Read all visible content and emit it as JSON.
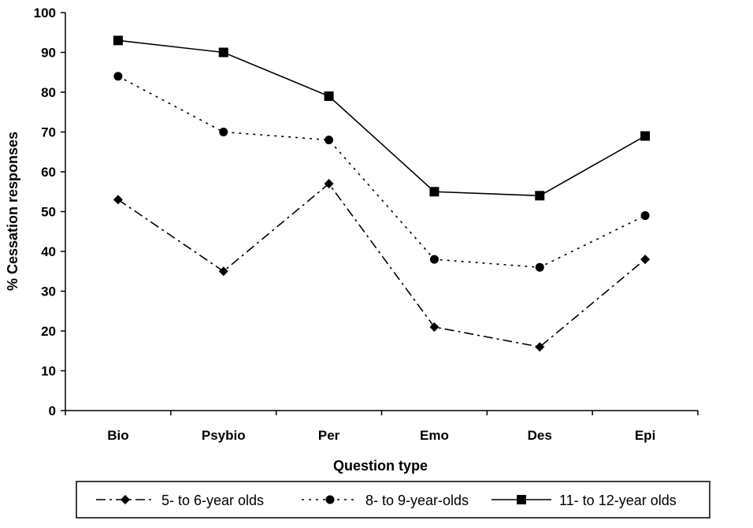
{
  "chart_data": {
    "type": "line",
    "title": "",
    "xlabel": "Question type",
    "ylabel": "% Cessation responses",
    "categories": [
      "Bio",
      "Psybio",
      "Per",
      "Emo",
      "Des",
      "Epi"
    ],
    "ylim": [
      0,
      100
    ],
    "yticks": [
      0,
      10,
      20,
      30,
      40,
      50,
      60,
      70,
      80,
      90,
      100
    ],
    "grid": false,
    "legend_position": "bottom",
    "series": [
      {
        "name": "5- to 6-year olds",
        "values": [
          53,
          35,
          57,
          21,
          16,
          38
        ],
        "marker": "diamond",
        "line_style": "dash-dot",
        "color": "#000000"
      },
      {
        "name": "8- to 9-year-olds",
        "values": [
          84,
          70,
          68,
          38,
          36,
          49
        ],
        "marker": "circle",
        "line_style": "dotted",
        "color": "#000000"
      },
      {
        "name": "11- to 12-year olds",
        "values": [
          93,
          90,
          79,
          55,
          54,
          69
        ],
        "marker": "square",
        "line_style": "solid",
        "color": "#000000"
      }
    ]
  }
}
